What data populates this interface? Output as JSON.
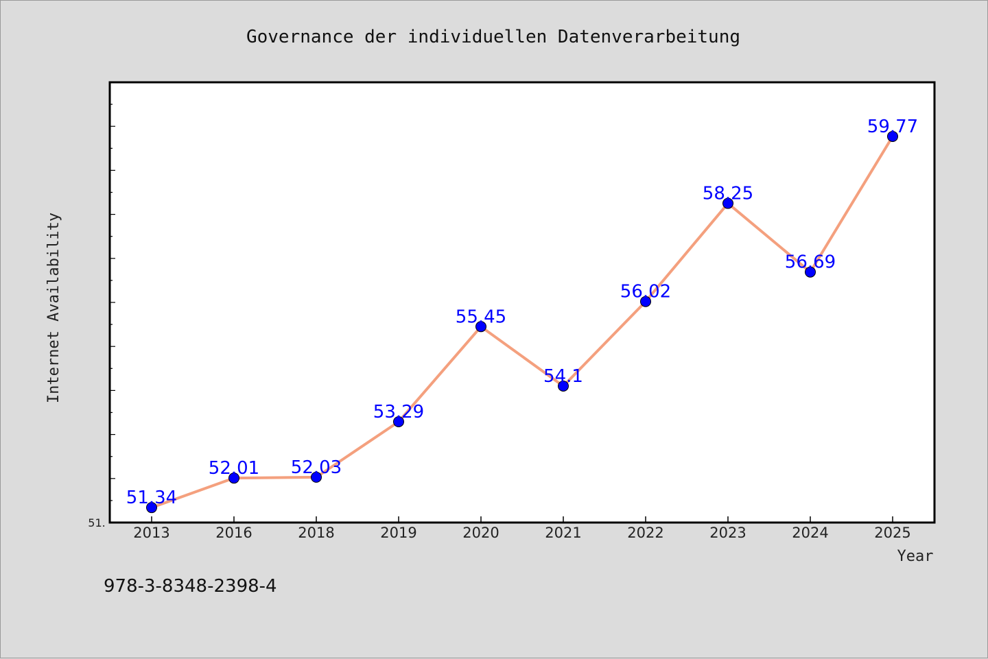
{
  "chart_data": {
    "type": "line",
    "title": "Governance der individuellen Datenverarbeitung",
    "xlabel": "Year",
    "ylabel": "Internet Availability",
    "categories": [
      "2013",
      "2016",
      "2018",
      "2019",
      "2020",
      "2021",
      "2022",
      "2023",
      "2024",
      "2025"
    ],
    "series": [
      {
        "values": [
          51.34,
          52.01,
          52.03,
          53.29,
          55.45,
          54.1,
          56.02,
          58.25,
          56.69,
          59.77
        ],
        "labels": [
          "51.34",
          "52.01",
          "52.03",
          "53.29",
          "55.45",
          "54.1",
          "56.02",
          "58.25",
          "56.69",
          "59.77"
        ]
      }
    ],
    "ylim": [
      51.0,
      61.0
    ],
    "y_tick_label": "51.",
    "grid": false,
    "legend": "none",
    "colors": {
      "line": "#f4a07e",
      "marker": "#0000ff",
      "data_label": "#0000ff",
      "plot_bg": "#ffffff",
      "page_bg": "#dcdcdc"
    }
  },
  "footer": {
    "isbn": "978-3-8348-2398-4"
  }
}
